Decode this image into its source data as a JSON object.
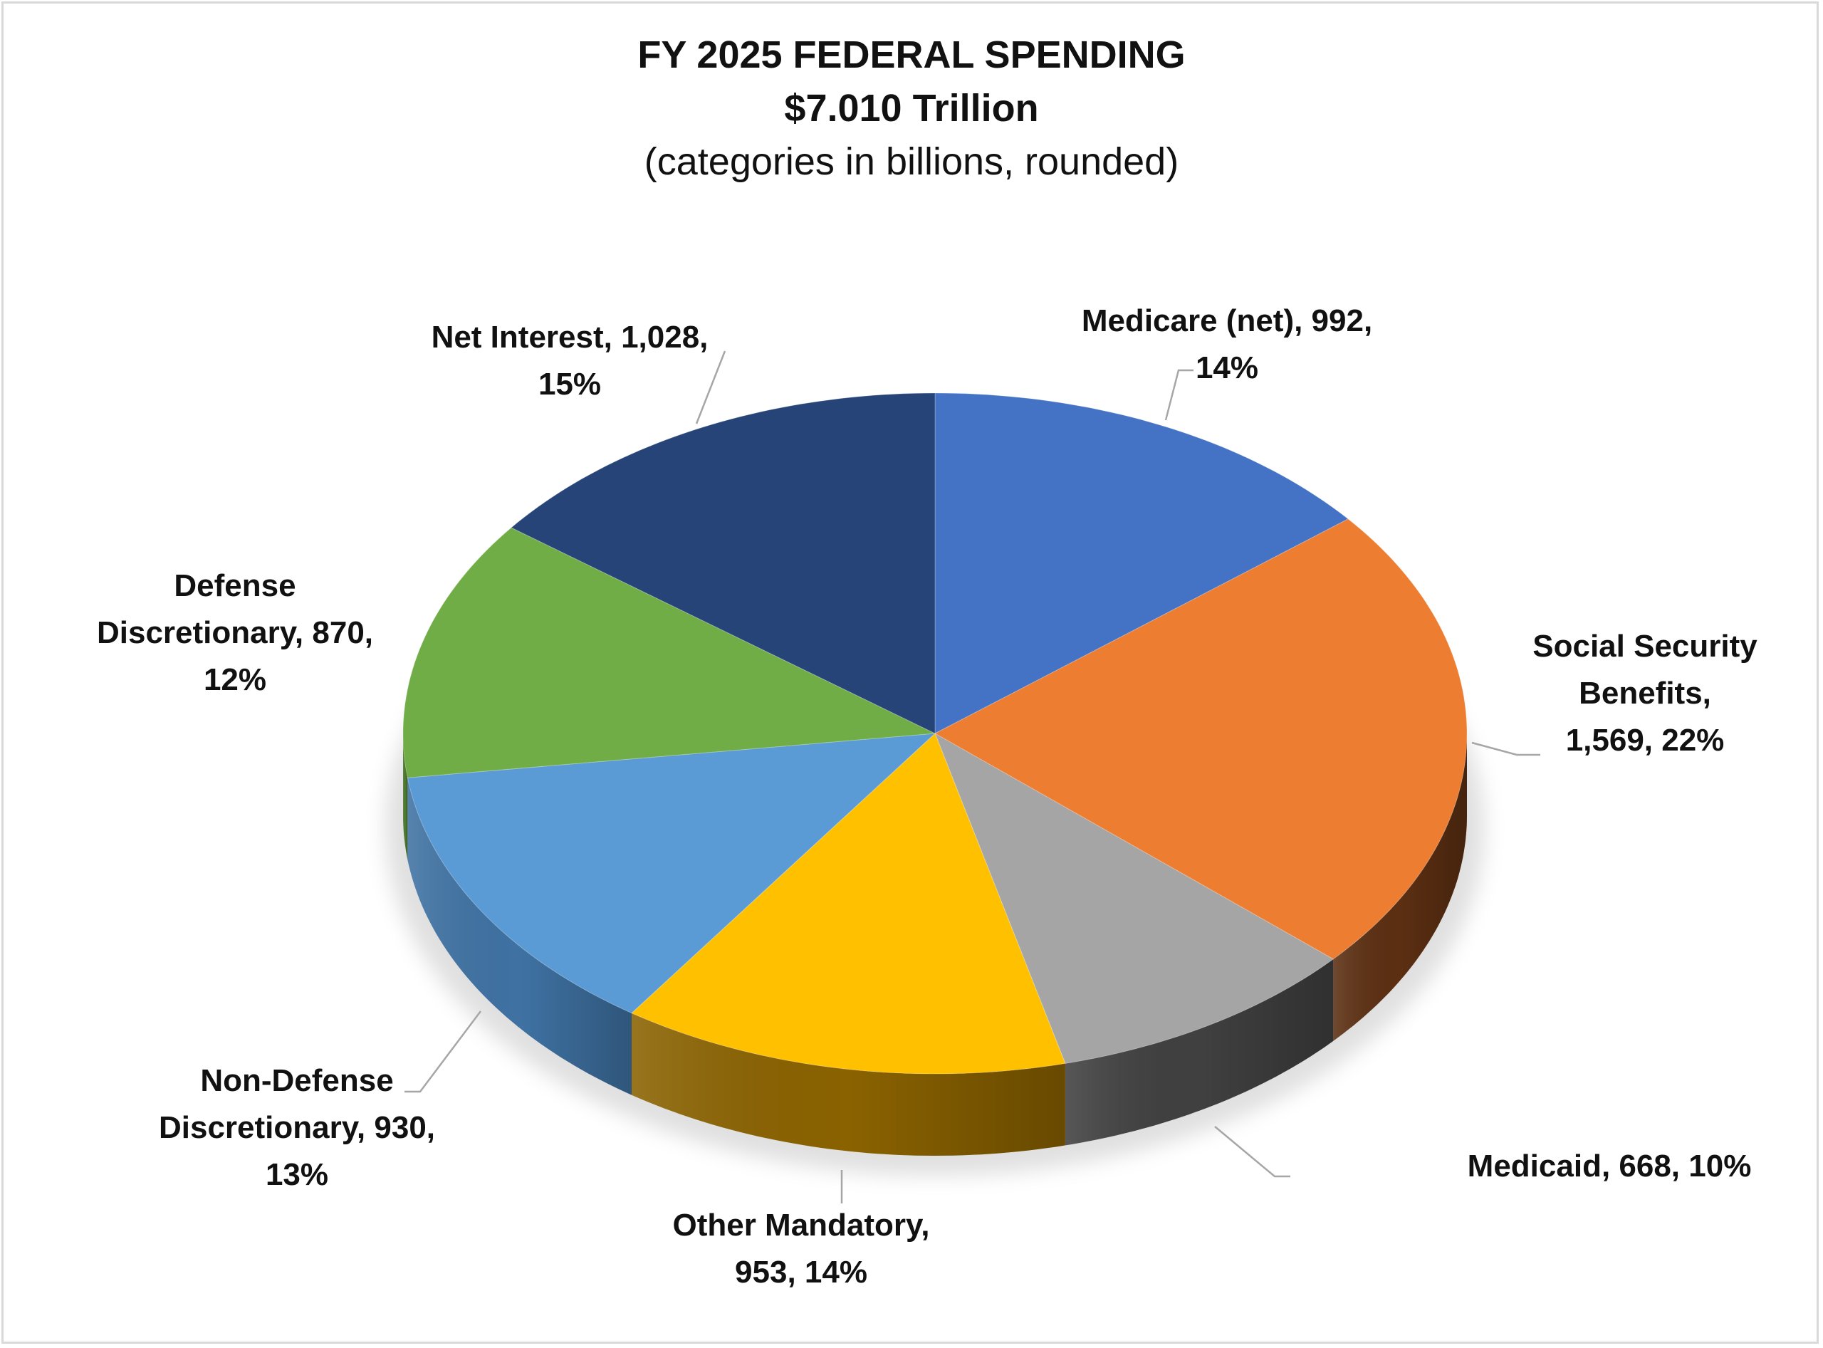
{
  "chart_data": {
    "type": "pie",
    "title": "FY 2025 FEDERAL SPENDING",
    "subtitle": "$7.010 Trillion",
    "note": "(categories in billions, rounded)",
    "total": 7010,
    "slices": [
      {
        "label": "Medicare (net)",
        "value": 992,
        "percent": 14,
        "color": "#4472C4",
        "side_color": "#2E5496",
        "label_lines": [
          "Medicare (net), 992,",
          "14%"
        ]
      },
      {
        "label": "Social Security Benefits",
        "value": 1569,
        "percent": 22,
        "color": "#ED7D31",
        "side_color": "#5C2F12",
        "label_lines": [
          "Social Security",
          "Benefits,",
          "1,569, 22%"
        ]
      },
      {
        "label": "Medicaid",
        "value": 668,
        "percent": 10,
        "color": "#A5A5A5",
        "side_color": "#404040",
        "label_lines": [
          "Medicaid, 668, 10%"
        ]
      },
      {
        "label": "Other Mandatory",
        "value": 953,
        "percent": 14,
        "color": "#FFC000",
        "side_color": "#8A6200",
        "label_lines": [
          "Other Mandatory,",
          "953, 14%"
        ]
      },
      {
        "label": "Non-Defense Discretionary",
        "value": 930,
        "percent": 13,
        "color": "#5B9BD5",
        "side_color": "#3F72A3",
        "label_lines": [
          "Non-Defense",
          "Discretionary, 930,",
          "13%"
        ]
      },
      {
        "label": "Defense Discretionary",
        "value": 870,
        "percent": 12,
        "color": "#70AD47",
        "side_color": "#4E7A31",
        "label_lines": [
          "Defense",
          "Discretionary, 870,",
          "12%"
        ]
      },
      {
        "label": "Net Interest",
        "value": 1028,
        "percent": 15,
        "color": "#264478",
        "side_color": "#1A2F55",
        "label_lines": [
          "Net Interest, 1,028,",
          "15%"
        ]
      }
    ]
  }
}
